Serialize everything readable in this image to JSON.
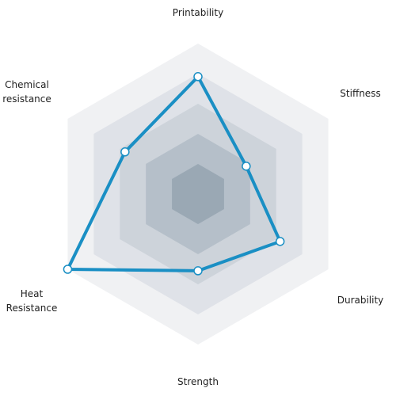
{
  "chart_data": {
    "type": "radar",
    "axes": [
      {
        "label": "Printability",
        "value": 7.8
      },
      {
        "label": "Stiffness",
        "value": 3.7
      },
      {
        "label": "Durability",
        "value": 6.3
      },
      {
        "label": "Strength",
        "value": 5.1
      },
      {
        "label": "Heat\nResistance",
        "value": 10
      },
      {
        "label": "Chemical\nresistance",
        "value": 5.6
      }
    ],
    "range": [
      0,
      10
    ],
    "rings": 5,
    "colors": {
      "line": "#1a8fc4",
      "point_fill": "#ffffff",
      "rings": [
        "#f0f1f3",
        "#dfe2e8",
        "#cdd3da",
        "#b5bfc9",
        "#9aa8b4"
      ]
    }
  }
}
